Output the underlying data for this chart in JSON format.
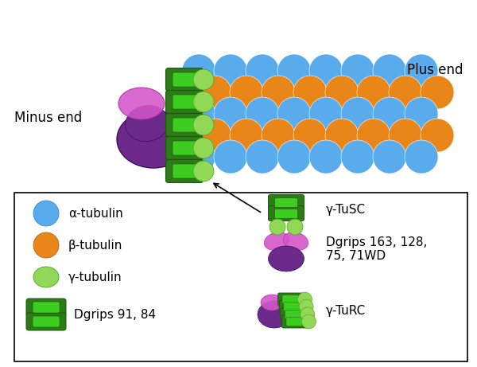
{
  "bg_color": "#ffffff",
  "blue_tubulin": "#5aabec",
  "orange_tubulin": "#e8861a",
  "light_green_tubulin": "#90d855",
  "dark_green": "#2d7a18",
  "medium_green": "#3dcc20",
  "purple_dark": "#6b2a8a",
  "pink_light": "#d455c8",
  "minus_end_text": "Minus end",
  "plus_end_text": "Plus end",
  "alpha_label": "α-tubulin",
  "beta_label": "β-tubulin",
  "gamma_label": "γ-tubulin",
  "dgrips84_label": "Dgrips 91, 84",
  "tusc_label": "γ-TuSC",
  "dgrips163_label": "Dgrips 163, 128,\n75, 71WD",
  "turc_label": "γ-TuRC",
  "figsize": [
    6.0,
    4.61
  ],
  "dpi": 100
}
